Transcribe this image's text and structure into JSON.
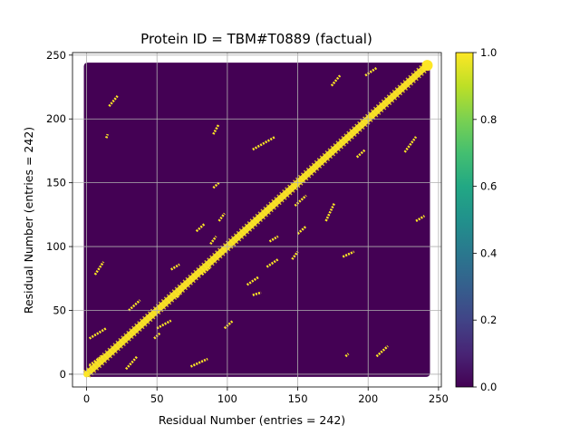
{
  "chart_data": {
    "type": "heatmap",
    "title": "Protein ID = TBM#T0889 (factual)",
    "xlabel": "Residual Number (entries = 242)",
    "ylabel": "Residual Number (entries = 242)",
    "xlim": [
      -10,
      252
    ],
    "ylim": [
      -10,
      252
    ],
    "xticks": [
      0,
      50,
      100,
      150,
      200,
      250
    ],
    "yticks": [
      0,
      50,
      100,
      150,
      200,
      250
    ],
    "grid": true,
    "matrix_size": 242,
    "value_range": [
      0,
      1
    ],
    "colormap": "viridis",
    "colorbar": {
      "ticks": [
        0.0,
        0.2,
        0.4,
        0.6,
        0.8,
        1.0
      ],
      "tick_labels": [
        "0.0",
        "0.2",
        "0.4",
        "0.6",
        "0.8",
        "1.0"
      ]
    },
    "colors": {
      "low": "#440154",
      "high": "#fde725"
    },
    "diagonal_band": {
      "from": 0,
      "to": 242,
      "value": 1
    },
    "endpoint_markers": [
      {
        "x": 0,
        "y": 0
      },
      {
        "x": 242,
        "y": 242
      }
    ],
    "contact_segments": [
      {
        "x1": 2,
        "y1": 28,
        "x2": 14,
        "y2": 36
      },
      {
        "x1": 2,
        "y1": 7,
        "x2": 12,
        "y2": 15
      },
      {
        "x1": 6,
        "y1": 78,
        "x2": 12,
        "y2": 88
      },
      {
        "x1": 16,
        "y1": 210,
        "x2": 22,
        "y2": 218
      },
      {
        "x1": 14,
        "y1": 185,
        "x2": 15,
        "y2": 188
      },
      {
        "x1": 28,
        "y1": 4,
        "x2": 36,
        "y2": 14
      },
      {
        "x1": 30,
        "y1": 50,
        "x2": 38,
        "y2": 58
      },
      {
        "x1": 48,
        "y1": 28,
        "x2": 52,
        "y2": 32
      },
      {
        "x1": 50,
        "y1": 36,
        "x2": 60,
        "y2": 42
      },
      {
        "x1": 60,
        "y1": 82,
        "x2": 66,
        "y2": 86
      },
      {
        "x1": 64,
        "y1": 60,
        "x2": 68,
        "y2": 66
      },
      {
        "x1": 78,
        "y1": 112,
        "x2": 84,
        "y2": 118
      },
      {
        "x1": 82,
        "y1": 78,
        "x2": 88,
        "y2": 84
      },
      {
        "x1": 74,
        "y1": 6,
        "x2": 86,
        "y2": 12
      },
      {
        "x1": 88,
        "y1": 102,
        "x2": 92,
        "y2": 108
      },
      {
        "x1": 90,
        "y1": 146,
        "x2": 94,
        "y2": 150
      },
      {
        "x1": 90,
        "y1": 188,
        "x2": 94,
        "y2": 196
      },
      {
        "x1": 94,
        "y1": 120,
        "x2": 98,
        "y2": 126
      },
      {
        "x1": 98,
        "y1": 36,
        "x2": 104,
        "y2": 42
      },
      {
        "x1": 114,
        "y1": 70,
        "x2": 122,
        "y2": 76
      },
      {
        "x1": 118,
        "y1": 176,
        "x2": 134,
        "y2": 186
      },
      {
        "x1": 118,
        "y1": 62,
        "x2": 124,
        "y2": 64
      },
      {
        "x1": 128,
        "y1": 84,
        "x2": 136,
        "y2": 90
      },
      {
        "x1": 130,
        "y1": 104,
        "x2": 136,
        "y2": 108
      },
      {
        "x1": 146,
        "y1": 90,
        "x2": 150,
        "y2": 96
      },
      {
        "x1": 148,
        "y1": 132,
        "x2": 156,
        "y2": 140
      },
      {
        "x1": 150,
        "y1": 110,
        "x2": 156,
        "y2": 116
      },
      {
        "x1": 170,
        "y1": 120,
        "x2": 176,
        "y2": 134
      },
      {
        "x1": 174,
        "y1": 226,
        "x2": 180,
        "y2": 234
      },
      {
        "x1": 182,
        "y1": 92,
        "x2": 190,
        "y2": 96
      },
      {
        "x1": 184,
        "y1": 14,
        "x2": 186,
        "y2": 16
      },
      {
        "x1": 192,
        "y1": 170,
        "x2": 198,
        "y2": 176
      },
      {
        "x1": 198,
        "y1": 234,
        "x2": 206,
        "y2": 240
      },
      {
        "x1": 206,
        "y1": 14,
        "x2": 214,
        "y2": 22
      },
      {
        "x1": 226,
        "y1": 174,
        "x2": 234,
        "y2": 186
      },
      {
        "x1": 234,
        "y1": 120,
        "x2": 240,
        "y2": 124
      }
    ]
  }
}
